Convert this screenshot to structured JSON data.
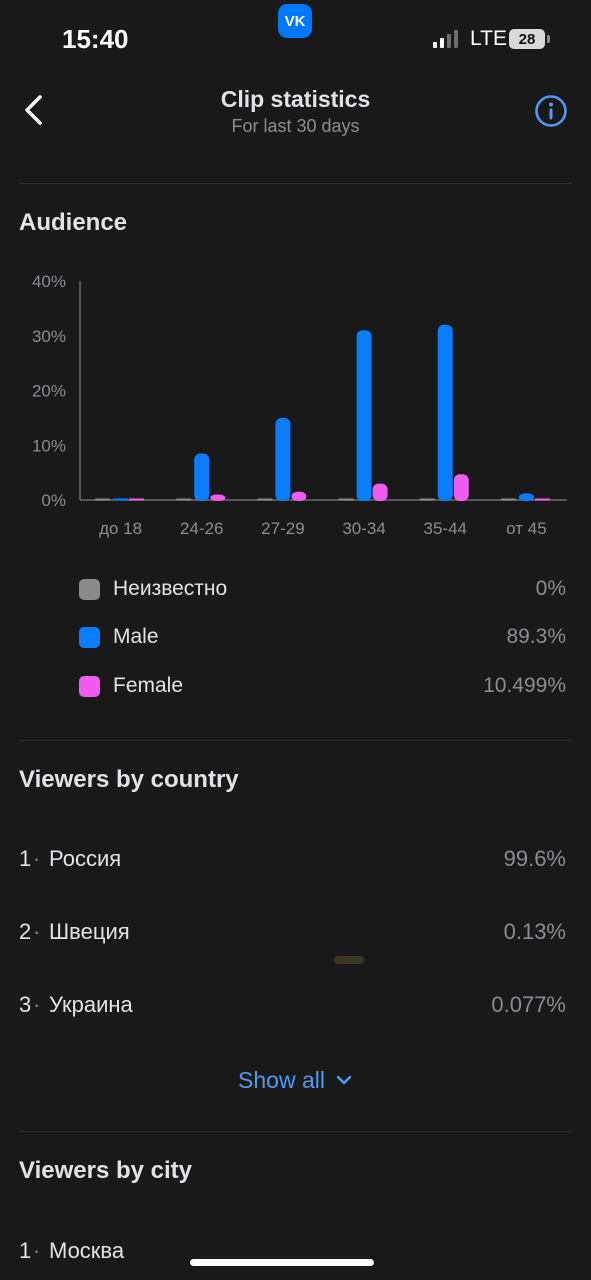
{
  "status_bar": {
    "time": "15:40",
    "app_badge": "VK",
    "network": "LTE",
    "battery": "28"
  },
  "header": {
    "title": "Clip statistics",
    "subtitle": "For last 30 days"
  },
  "audience": {
    "title": "Audience",
    "legend": [
      {
        "label": "Неизвестно",
        "value": "0%",
        "color": "#8a8a8a"
      },
      {
        "label": "Male",
        "value": "89.3%",
        "color": "#0a7dff"
      },
      {
        "label": "Female",
        "value": "10.499%",
        "color": "#f05cf0"
      }
    ]
  },
  "chart_data": {
    "type": "bar",
    "categories": [
      "до 18",
      "24-26",
      "27-29",
      "30-34",
      "35-44",
      "от 45"
    ],
    "series": [
      {
        "name": "Неизвестно",
        "color": "#8a8a8a",
        "values": [
          0,
          0,
          0,
          0,
          0,
          0
        ]
      },
      {
        "name": "Male",
        "color": "#0a7dff",
        "values": [
          0,
          8.5,
          15,
          31,
          32,
          1.2
        ]
      },
      {
        "name": "Female",
        "color": "#f05cf0",
        "values": [
          0,
          1,
          1.5,
          3,
          4.7,
          0
        ]
      }
    ],
    "yticks": [
      "40%",
      "30%",
      "20%",
      "10%",
      "0%"
    ],
    "ylim": [
      0,
      40
    ],
    "grid": false,
    "legend_placement": "bottom"
  },
  "countries": {
    "title": "Viewers by country",
    "items": [
      {
        "rank": "1",
        "name": "Россия",
        "value": "99.6%"
      },
      {
        "rank": "2",
        "name": "Швеция",
        "value": "0.13%"
      },
      {
        "rank": "3",
        "name": "Украина",
        "value": "0.077%"
      }
    ],
    "show_all": "Show all"
  },
  "cities": {
    "title": "Viewers by city",
    "items": [
      {
        "rank": "1",
        "name": "Москва"
      }
    ]
  },
  "separator": "·"
}
